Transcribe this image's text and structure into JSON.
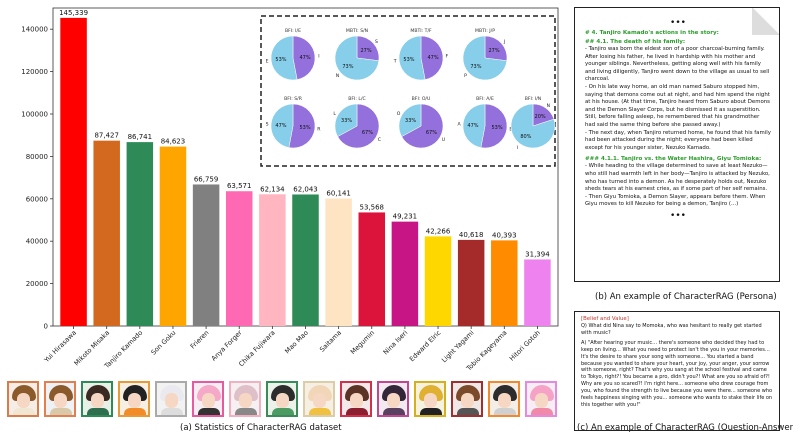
{
  "chart_data": {
    "type": "bar",
    "categories": [
      "Yui Hirasawa",
      "Mikoto Misaka",
      "Tanjiro Kamado",
      "Son Goku",
      "Frieren",
      "Anya Forger",
      "Chika Fujiwara",
      "Mao Mao",
      "Saitama",
      "Megumin",
      "Nina Iseri",
      "Edward Elric",
      "Light Yagami",
      "Tobio Kageyama",
      "Hitori Gotoh"
    ],
    "values": [
      145339,
      87427,
      86741,
      84623,
      66759,
      63571,
      62134,
      62043,
      60141,
      53568,
      49231,
      42266,
      40618,
      40393,
      31394
    ],
    "value_labels": [
      "145,339",
      "87,427",
      "86,741",
      "84,623",
      "66,759",
      "63,571",
      "62,134",
      "62,043",
      "60,141",
      "53,568",
      "49,231",
      "42,266",
      "40,618",
      "40,393",
      "31,394"
    ],
    "colors": [
      "#ff0000",
      "#d2691e",
      "#2e8b57",
      "#ffa500",
      "#808080",
      "#ff69b4",
      "#ffb6c1",
      "#2e8b57",
      "#ffe4c4",
      "#dc143c",
      "#c71585",
      "#ffd700",
      "#a52a2a",
      "#ff8c00",
      "#ee82ee"
    ],
    "ylim": [
      0,
      150000
    ],
    "yticks": [
      0,
      20000,
      40000,
      60000,
      80000,
      100000,
      120000,
      140000
    ],
    "ytick_labels": [
      "0",
      "20000",
      "40000",
      "60000",
      "80000",
      "100000",
      "120000",
      "140000"
    ],
    "title": "",
    "xlabel": "",
    "ylabel": ""
  },
  "pies": [
    {
      "title": "BFI: I/E",
      "left_label": "E",
      "right_label": "I",
      "values": [
        47,
        53
      ],
      "labels": [
        "47%",
        "53%"
      ]
    },
    {
      "title": "MBTI: S/N",
      "left_label": "N",
      "right_label": "S",
      "values": [
        27,
        73
      ],
      "labels": [
        "27%",
        "73%"
      ]
    },
    {
      "title": "MBTI: T/F",
      "left_label": "T",
      "right_label": "F",
      "values": [
        47,
        53
      ],
      "labels": [
        "47%",
        "53%"
      ]
    },
    {
      "title": "MBTI: J/P",
      "left_label": "P",
      "right_label": "J",
      "values": [
        27,
        73
      ],
      "labels": [
        "27%",
        "73%"
      ]
    },
    {
      "title": "BFI: S/R",
      "left_label": "S",
      "right_label": "R",
      "values": [
        53,
        47
      ],
      "labels": [
        "53%",
        "47%"
      ]
    },
    {
      "title": "BFI: L/C",
      "left_label": "L",
      "right_label": "C",
      "values": [
        67,
        33
      ],
      "labels": [
        "67%",
        "33%"
      ]
    },
    {
      "title": "BFI: O/U",
      "left_label": "O",
      "right_label": "U",
      "values": [
        67,
        33
      ],
      "labels": [
        "67%",
        "33%"
      ]
    },
    {
      "title": "BFI: A/E",
      "left_label": "A",
      "right_label": "E",
      "values": [
        53,
        47
      ],
      "labels": [
        "53%",
        "47%"
      ]
    },
    {
      "title": "BFI: I/N",
      "left_label": "I",
      "right_label": "N",
      "values": [
        20,
        80
      ],
      "labels": [
        "20%",
        "80%"
      ]
    }
  ],
  "pie_colors": {
    "primary": "#9370db",
    "secondary": "#87ceeb"
  },
  "portrait_colors": [
    {
      "border": "#d97b4a",
      "hair": "#8b5a2b",
      "body": "#f0e6d2",
      "bg": "#f6eee6"
    },
    {
      "border": "#e08050",
      "hair": "#8b5a2b",
      "body": "#d9c9a8",
      "bg": "#eef2f6"
    },
    {
      "border": "#2e8b57",
      "hair": "#3b2a22",
      "body": "#2f6f4f",
      "bg": "#e8f0e8"
    },
    {
      "border": "#e69a3a",
      "hair": "#222222",
      "body": "#f28c28",
      "bg": "#f6efe2"
    },
    {
      "border": "#aaaaaa",
      "hair": "#e9e9ef",
      "body": "#dddddd",
      "bg": "#f2f2f2"
    },
    {
      "border": "#e85aa0",
      "hair": "#f5a8c8",
      "body": "#333333",
      "bg": "#f6eef2"
    },
    {
      "border": "#f2b0c0",
      "hair": "#e0c0c8",
      "body": "#888888",
      "bg": "#f6f0f2"
    },
    {
      "border": "#3a8a5a",
      "hair": "#2c2c2c",
      "body": "#4c9b62",
      "bg": "#eaf2ea"
    },
    {
      "border": "#ddccaa",
      "hair": "#f2d6b8",
      "body": "#f0c040",
      "bg": "#f6efe4"
    },
    {
      "border": "#d0304a",
      "hair": "#5a3326",
      "body": "#8b1e2f",
      "bg": "#f4e8ea"
    },
    {
      "border": "#c04890",
      "hair": "#33253a",
      "body": "#5a4060",
      "bg": "#f2eaf0"
    },
    {
      "border": "#d4b020",
      "hair": "#e0b030",
      "body": "#222222",
      "bg": "#f6f2e0"
    },
    {
      "border": "#a03030",
      "hair": "#7a4a2a",
      "body": "#555555",
      "bg": "#f0e8e6"
    },
    {
      "border": "#f08a30",
      "hair": "#2c2c2c",
      "body": "#d0d0d0",
      "bg": "#f4eee6"
    },
    {
      "border": "#e68adf",
      "hair": "#f5a2c6",
      "body": "#f08aa8",
      "bg": "#f6eef4"
    }
  ],
  "captions": {
    "a": "(a) Statistics of CharacterRAG dataset",
    "b": "(b) An example of CharacterRAG (Persona)",
    "c": "(c) An example of CharacterRAG (Question-Answer)"
  },
  "persona": {
    "ellipsis_top": "•••",
    "heading1": "# 4. Tanjiro Kamado's actions in the story:",
    "heading2": "## 4.1. The death of his family:",
    "para1": "- Tanjiro was born the eldest son of a poor charcoal-burning family. After losing his father, he lived in hardship with his mother and younger siblings. Nevertheless, getting along well with his family and living diligently, Tanjiro went down to the village as usual to sell charcoal.",
    "para2": "- On his late way home, an old man named Saburo stopped him, saying that demons come out at night, and had him spend the night at his house. (At that time, Tanjiro heard from Saburo about Demons and the Demon Slayer Corps, but he dismissed it as superstition. Still, before falling asleep, he remembered that his grandmother had said the same thing before she passed away.)",
    "para3": "- The next day, when Tanjiro returned home, he found that his family had been attacked during the night; everyone had been killed except for his younger sister, Nezuko Kamado.",
    "heading3": "### 4.1.1. Tanjiro vs. the Water Hashira, Giyu Tomioka:",
    "para4": "- While heading to the village determined to save at least Nezuko—who still had warmth left in her body—Tanjiro is attacked by Nezuko, who has turned into a demon. As he desperately holds out, Nezuko sheds tears at his earnest cries, as if some part of her self remains.",
    "para5": "- Then Giyu Tomioka, a Demon Slayer, appears before them. When Giyu moves to kill Nezuko for being a demon, Tanjiro (...)",
    "ellipsis_bottom": "•••"
  },
  "qa": {
    "tag": "[Belief and Value]",
    "question": "Q) What did Nina say to Momoka, who was hesitant to really get started with music?",
    "answer": "A) \"After hearing your music… there's someone who decided they had to keep on living… What you need to protect isn't the you in your memories… It's the desire to share your song with someone... You started a band because you wanted to share your heart, your joy, your anger, your sorrow with someone, right? That's why you sang at the school festival and came to Tokyo, right?! You became a pro, didn't you?! What are you so afraid of?! Why are you so scared?! I'm right here... someone who drew courage from you, who found the strength to live because you were there... someone who feels happiness singing with you... someone who wants to stake their life on this together with you!\""
  }
}
